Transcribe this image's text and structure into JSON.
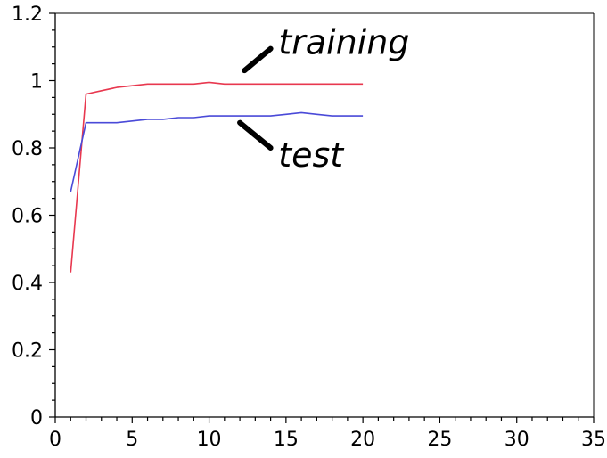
{
  "chart_data": {
    "type": "line",
    "title": "",
    "xlabel": "",
    "ylabel": "",
    "xlim": [
      0,
      35
    ],
    "ylim": [
      0,
      1.2
    ],
    "x_ticks": [
      "0",
      "5",
      "10",
      "15",
      "20",
      "25",
      "30",
      "35"
    ],
    "y_ticks": [
      "0",
      "0.2",
      "0.4",
      "0.6",
      "0.8",
      "1",
      "1.2"
    ],
    "x_tick_values": [
      0,
      5,
      10,
      15,
      20,
      25,
      30,
      35
    ],
    "y_tick_values": [
      0,
      0.2,
      0.4,
      0.6,
      0.8,
      1,
      1.2
    ],
    "grid": false,
    "series": [
      {
        "name": "training",
        "color": "#e8384f",
        "x": [
          1,
          2,
          3,
          4,
          5,
          6,
          7,
          8,
          9,
          10,
          11,
          12,
          13,
          14,
          15,
          16,
          17,
          18,
          19,
          20
        ],
        "y": [
          0.43,
          0.96,
          0.97,
          0.98,
          0.985,
          0.99,
          0.99,
          0.99,
          0.99,
          0.995,
          0.99,
          0.99,
          0.99,
          0.99,
          0.99,
          0.99,
          0.99,
          0.99,
          0.99,
          0.99
        ]
      },
      {
        "name": "test",
        "color": "#4a4ad8",
        "x": [
          1,
          2,
          3,
          4,
          5,
          6,
          7,
          8,
          9,
          10,
          11,
          12,
          13,
          14,
          15,
          16,
          17,
          18,
          19,
          20
        ],
        "y": [
          0.67,
          0.875,
          0.875,
          0.875,
          0.88,
          0.885,
          0.885,
          0.89,
          0.89,
          0.895,
          0.895,
          0.895,
          0.895,
          0.895,
          0.9,
          0.905,
          0.9,
          0.895,
          0.895,
          0.895
        ]
      }
    ],
    "annotations": [
      {
        "text": "training",
        "series": "training"
      },
      {
        "text": "test",
        "series": "test"
      }
    ]
  }
}
